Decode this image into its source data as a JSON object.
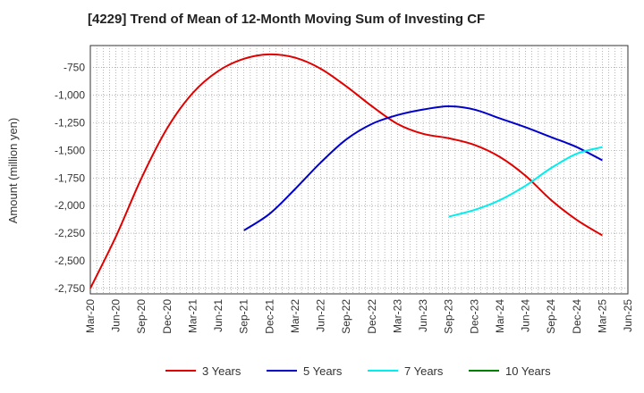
{
  "chart_data": {
    "type": "line",
    "title": "[4229]  Trend of Mean of 12-Month Moving Sum of Investing CF",
    "ylabel": "Amount (million yen)",
    "xlabel": "",
    "ylim": [
      -2800,
      -550
    ],
    "yticks": [
      -750,
      -1000,
      -1250,
      -1500,
      -1750,
      -2000,
      -2250,
      -2500,
      -2750
    ],
    "ytick_labels": [
      "-750",
      "-1,000",
      "-1,250",
      "-1,500",
      "-1,750",
      "-2,000",
      "-2,250",
      "-2,500",
      "-2,750"
    ],
    "categories": [
      "Mar-20",
      "Jun-20",
      "Sep-20",
      "Dec-20",
      "Mar-21",
      "Jun-21",
      "Sep-21",
      "Dec-21",
      "Mar-22",
      "Jun-22",
      "Sep-22",
      "Dec-22",
      "Mar-23",
      "Jun-23",
      "Sep-23",
      "Dec-23",
      "Mar-24",
      "Jun-24",
      "Sep-24",
      "Dec-24",
      "Mar-25",
      "Jun-25"
    ],
    "grid": true,
    "legend_position": "bottom",
    "series": [
      {
        "name": "3 Years",
        "color": "#e00000",
        "values": [
          -2750,
          -2280,
          -1750,
          -1300,
          -980,
          -780,
          -670,
          -630,
          -660,
          -760,
          -920,
          -1100,
          -1260,
          -1350,
          -1390,
          -1450,
          -1560,
          -1730,
          -1950,
          -2130,
          -2270,
          null
        ]
      },
      {
        "name": "5 Years",
        "color": "#0000cc",
        "values": [
          null,
          null,
          null,
          null,
          null,
          null,
          -2225,
          -2075,
          -1850,
          -1610,
          -1400,
          -1260,
          -1180,
          -1130,
          -1100,
          -1130,
          -1210,
          -1290,
          -1380,
          -1470,
          -1590,
          null
        ]
      },
      {
        "name": "7 Years",
        "color": "#00eeee",
        "values": [
          null,
          null,
          null,
          null,
          null,
          null,
          null,
          null,
          null,
          null,
          null,
          null,
          null,
          null,
          -2100,
          -2040,
          -1950,
          -1820,
          -1660,
          -1530,
          -1470,
          null
        ]
      },
      {
        "name": "10 Years",
        "color": "#008000",
        "values": [
          null,
          null,
          null,
          null,
          null,
          null,
          null,
          null,
          null,
          null,
          null,
          null,
          null,
          null,
          null,
          null,
          null,
          null,
          null,
          null,
          null,
          null
        ]
      }
    ]
  }
}
